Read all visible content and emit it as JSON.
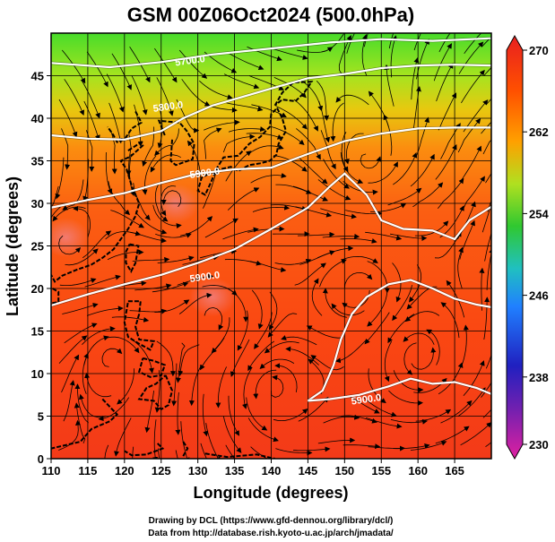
{
  "title": "GSM 00Z06Oct2024 (500.0hPa)",
  "chart_data": {
    "type": "heatmap",
    "title": "GSM 00Z06Oct2024 (500.0hPa)",
    "xlabel": "Longitude (degrees)",
    "ylabel": "Latitude  (degrees)",
    "xlim": [
      110,
      170
    ],
    "ylim": [
      0,
      50
    ],
    "x_ticks": [
      110,
      115,
      120,
      125,
      130,
      135,
      140,
      145,
      150,
      155,
      160,
      165
    ],
    "y_ticks": [
      0,
      5,
      10,
      15,
      20,
      25,
      30,
      35,
      40,
      45
    ],
    "grid": true,
    "colorbar": {
      "min": 230,
      "max": 270,
      "ticks": [
        230,
        238,
        246,
        254,
        262,
        270
      ],
      "colors": [
        "#e020a0",
        "#3020c0",
        "#2090ff",
        "#20c0c0",
        "#40d040",
        "#c0e020",
        "#ffa000",
        "#ff5000",
        "#ee3020"
      ]
    },
    "contours": [
      {
        "label": "5700.0",
        "points": [
          [
            110,
            46.5
          ],
          [
            118,
            46
          ],
          [
            125,
            46.6
          ],
          [
            132,
            47.5
          ],
          [
            140,
            48.2
          ],
          [
            148,
            48.9
          ],
          [
            155,
            49.3
          ],
          [
            162,
            49.1
          ],
          [
            170,
            49.4
          ]
        ]
      },
      {
        "label": "5800.0",
        "points": [
          [
            110,
            38
          ],
          [
            115,
            37.6
          ],
          [
            120,
            37.5
          ],
          [
            125,
            38.5
          ],
          [
            128,
            40
          ],
          [
            132,
            41.5
          ],
          [
            136,
            42.5
          ],
          [
            140,
            43.5
          ],
          [
            145,
            44.7
          ],
          [
            150,
            45.2
          ],
          [
            155,
            45.9
          ],
          [
            160,
            46.2
          ],
          [
            165,
            46.3
          ],
          [
            170,
            46.2
          ]
        ]
      },
      {
        "label": "5900.0",
        "points": [
          [
            110,
            29.5
          ],
          [
            115,
            30.4
          ],
          [
            120,
            31.2
          ],
          [
            125,
            32.4
          ],
          [
            130,
            33.5
          ],
          [
            135,
            34
          ],
          [
            140,
            34.2
          ],
          [
            145,
            35.8
          ],
          [
            150,
            37.3
          ],
          [
            155,
            38.2
          ],
          [
            160,
            38.8
          ],
          [
            165,
            38.9
          ],
          [
            170,
            38.9
          ]
        ]
      },
      {
        "label": "5900.0",
        "points": [
          [
            110,
            18
          ],
          [
            115,
            19.3
          ],
          [
            120,
            20.5
          ],
          [
            125,
            21.6
          ],
          [
            130,
            23
          ],
          [
            135,
            24.6
          ],
          [
            140,
            27
          ],
          [
            145,
            29.5
          ],
          [
            148,
            32
          ],
          [
            150,
            33.5
          ],
          [
            153,
            31
          ],
          [
            155,
            28
          ],
          [
            158,
            27
          ],
          [
            162,
            26.8
          ],
          [
            165,
            25.8
          ],
          [
            167,
            28
          ],
          [
            170,
            29.6
          ]
        ]
      },
      {
        "label": "5900.0",
        "points": [
          [
            145,
            6.8
          ],
          [
            147,
            8
          ],
          [
            148.5,
            11
          ],
          [
            149.5,
            14
          ],
          [
            151,
            17
          ],
          [
            153,
            19
          ],
          [
            156,
            20.5
          ],
          [
            159,
            21
          ],
          [
            162,
            20
          ],
          [
            165,
            18.8
          ],
          [
            168,
            18.1
          ],
          [
            170,
            17.8
          ]
        ]
      },
      {
        "label": "5900.0",
        "points": [
          [
            145,
            6.8
          ],
          [
            148,
            7
          ],
          [
            152,
            7.5
          ],
          [
            156,
            8.5
          ],
          [
            159,
            9.4
          ],
          [
            162,
            8.8
          ],
          [
            165,
            9
          ],
          [
            168,
            8.3
          ],
          [
            170,
            7.6
          ]
        ]
      }
    ],
    "high_spots": [
      {
        "lon": 112,
        "lat": 26,
        "value": 268
      },
      {
        "lon": 127,
        "lat": 30,
        "value": 267
      },
      {
        "lon": 132,
        "lat": 19,
        "value": 268
      }
    ],
    "streamline_note": ""
  },
  "credits": {
    "line1": "Drawing by DCL (https://www.gfd-dennou.org/library/dcl/)",
    "line2": "Data from http://database.rish.kyoto-u.ac.jp/arch/jmadata/"
  }
}
